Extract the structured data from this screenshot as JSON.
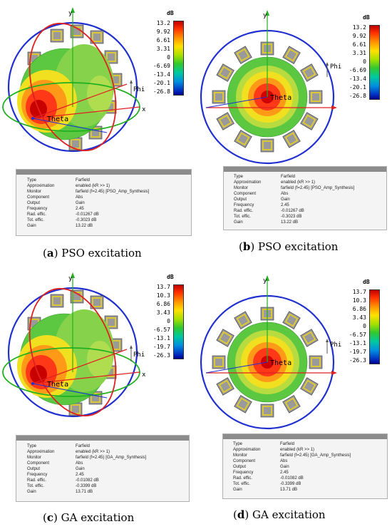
{
  "panels": [
    {
      "caption_letter": "a",
      "caption_text": " PSO excitation",
      "colorbar": {
        "unit": "dB",
        "ticks": [
          "13.2",
          "9.92",
          "6.61",
          "3.31",
          "0",
          "-6.69",
          "-13.4",
          "-20.1",
          "-26.8"
        ]
      },
      "axes": {
        "x": "x",
        "y": "y",
        "theta": "Theta",
        "phi": "Phi"
      },
      "info": [
        [
          "Type",
          "Farfield"
        ],
        [
          "Approximation",
          "enabled (kR >> 1)"
        ],
        [
          "Monitor",
          "farfield (f=2.45) [PSO_Amp_Synthesis]"
        ],
        [
          "Component",
          "Abs"
        ],
        [
          "Output",
          "Gain"
        ],
        [
          "Frequency",
          "2.45"
        ],
        [
          "Rad. effic.",
          "-0.01267 dB"
        ],
        [
          "Tot. effic.",
          "-0.3023 dB"
        ],
        [
          "Gain",
          "13.22 dB"
        ]
      ]
    },
    {
      "caption_letter": "b",
      "caption_text": " PSO excitation",
      "colorbar": {
        "unit": "dB",
        "ticks": [
          "13.2",
          "9.92",
          "6.61",
          "3.31",
          "0",
          "-6.69",
          "-13.4",
          "-20.1",
          "-26.8"
        ]
      },
      "axes": {
        "x": "x",
        "y": "y",
        "theta": "Theta",
        "phi": "Phi"
      },
      "info": [
        [
          "Type",
          "Farfield"
        ],
        [
          "Approximation",
          "enabled (kR >> 1)"
        ],
        [
          "Monitor",
          "farfield (f=2.45) [PSO_Amp_Synthesis]"
        ],
        [
          "Component",
          "Abs"
        ],
        [
          "Output",
          "Gain"
        ],
        [
          "Frequency",
          "2.45"
        ],
        [
          "Rad. effic.",
          "-0.01267 dB"
        ],
        [
          "Tot. effic.",
          "-0.3023 dB"
        ],
        [
          "Gain",
          "13.22 dB"
        ]
      ]
    },
    {
      "caption_letter": "c",
      "caption_text": " GA excitation",
      "colorbar": {
        "unit": "dB",
        "ticks": [
          "13.7",
          "10.3",
          "6.86",
          "3.43",
          "0",
          "-6.57",
          "-13.1",
          "-19.7",
          "-26.3"
        ]
      },
      "axes": {
        "x": "x",
        "y": "y",
        "theta": "Theta",
        "phi": "Phi"
      },
      "info": [
        [
          "Type",
          "Farfield"
        ],
        [
          "Approximation",
          "enabled (kR >> 1)"
        ],
        [
          "Monitor",
          "farfield (f=2.45) [GA_Amp_Synthesis]"
        ],
        [
          "Component",
          "Abs"
        ],
        [
          "Output",
          "Gain"
        ],
        [
          "Frequency",
          "2.45"
        ],
        [
          "Rad. effic.",
          "-0.01082 dB"
        ],
        [
          "Tot. effic.",
          "-0.3399 dB"
        ],
        [
          "Gain",
          "13.71 dB"
        ]
      ]
    },
    {
      "caption_letter": "d",
      "caption_text": " GA excitation",
      "colorbar": {
        "unit": "dB",
        "ticks": [
          "13.7",
          "10.3",
          "6.86",
          "3.43",
          "0",
          "-6.57",
          "-13.1",
          "-19.7",
          "-26.3"
        ]
      },
      "axes": {
        "x": "x",
        "y": "y",
        "theta": "Theta",
        "phi": "Phi"
      },
      "info": [
        [
          "Type",
          "Farfield"
        ],
        [
          "Approximation",
          "enabled (kR >> 1)"
        ],
        [
          "Monitor",
          "farfield (f=2.45) [GA_Amp_Synthesis]"
        ],
        [
          "Component",
          "Abs"
        ],
        [
          "Output",
          "Gain"
        ],
        [
          "Frequency",
          "2.45"
        ],
        [
          "Rad. effic.",
          "-0.01082 dB"
        ],
        [
          "Tot. effic.",
          "-0.3399 dB"
        ],
        [
          "Gain",
          "13.71 dB"
        ]
      ]
    }
  ]
}
